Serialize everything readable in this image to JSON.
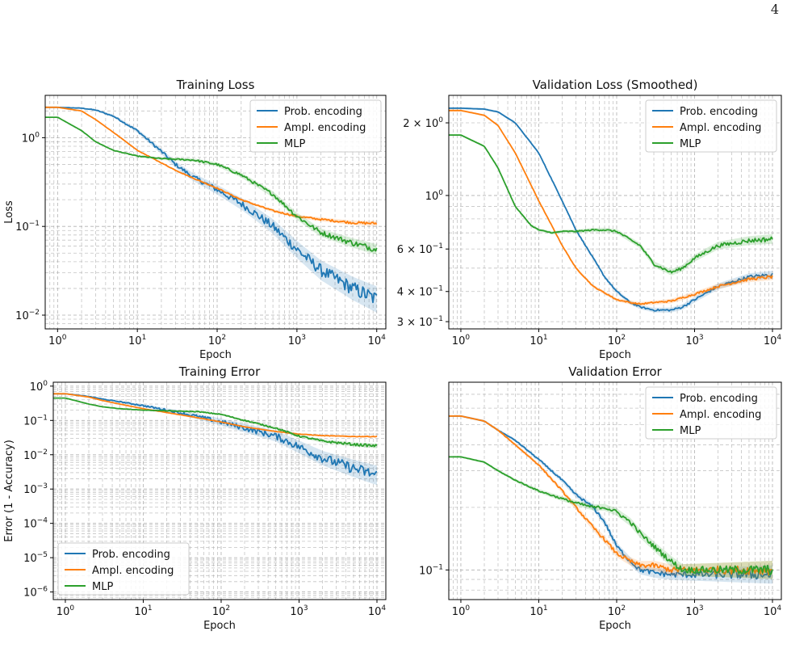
{
  "page_number": "4",
  "colors": {
    "prob": "#1f77b4",
    "ampl": "#ff7f0e",
    "mlp": "#2ca02c",
    "grid": "#b0b0b0"
  },
  "chart_data": [
    {
      "type": "line",
      "title": "Training Loss",
      "xlabel": "Epoch",
      "ylabel": "Loss",
      "xscale": "log",
      "yscale": "log",
      "xlim": [
        0.7,
        13000
      ],
      "ylim": [
        0.007,
        3.0
      ],
      "xticks": [
        1,
        10,
        100,
        1000,
        10000
      ],
      "xticklabels": [
        "10^0",
        "10^1",
        "10^2",
        "10^3",
        "10^4"
      ],
      "yticks": [
        0.01,
        0.1,
        1
      ],
      "yticklabels": [
        "10^-2",
        "10^-1",
        "10^0"
      ],
      "grid": true,
      "legend": "top-right",
      "series": [
        {
          "name": "Prob. encoding",
          "color": "#1f77b4",
          "noise": 0.18,
          "x": [
            0.7,
            1,
            2,
            3,
            5,
            10,
            20,
            30,
            50,
            100,
            200,
            300,
            500,
            1000,
            2000,
            5000,
            10000
          ],
          "y": [
            2.2,
            2.2,
            2.15,
            2.05,
            1.75,
            1.2,
            0.7,
            0.5,
            0.36,
            0.26,
            0.18,
            0.14,
            0.1,
            0.055,
            0.032,
            0.02,
            0.015
          ]
        },
        {
          "name": "Ampl. encoding",
          "color": "#ff7f0e",
          "noise": 0.03,
          "x": [
            0.7,
            1,
            2,
            3,
            5,
            10,
            20,
            30,
            50,
            100,
            200,
            500,
            1000,
            2000,
            5000,
            10000
          ],
          "y": [
            2.2,
            2.2,
            2.0,
            1.6,
            1.15,
            0.72,
            0.52,
            0.43,
            0.35,
            0.27,
            0.2,
            0.15,
            0.13,
            0.12,
            0.11,
            0.108
          ]
        },
        {
          "name": "MLP",
          "color": "#2ca02c",
          "noise": 0.07,
          "x": [
            0.7,
            1,
            2,
            3,
            5,
            10,
            20,
            50,
            100,
            200,
            500,
            1000,
            2000,
            5000,
            10000
          ],
          "y": [
            1.7,
            1.7,
            1.2,
            0.9,
            0.72,
            0.62,
            0.58,
            0.56,
            0.5,
            0.38,
            0.23,
            0.13,
            0.085,
            0.065,
            0.055
          ]
        }
      ]
    },
    {
      "type": "line",
      "title": "Validation Loss (Smoothed)",
      "xlabel": "Epoch",
      "ylabel": "",
      "xscale": "log",
      "yscale": "log",
      "xlim": [
        0.7,
        13000
      ],
      "ylim": [
        0.28,
        2.6
      ],
      "xticks": [
        1,
        10,
        100,
        1000,
        10000
      ],
      "xticklabels": [
        "10^0",
        "10^1",
        "10^2",
        "10^3",
        "10^4"
      ],
      "yticks": [
        2,
        1,
        0.6,
        0.4,
        0.3
      ],
      "yticklabels": [
        "2 × 10^0",
        "10^0",
        "6 × 10^-1",
        "4 × 10^-1",
        "3 × 10^-1"
      ],
      "grid": true,
      "legend": "top-right",
      "series": [
        {
          "name": "Prob. encoding",
          "color": "#1f77b4",
          "noise": 0.015,
          "x": [
            0.7,
            1,
            2,
            3,
            5,
            10,
            20,
            30,
            50,
            70,
            100,
            150,
            200,
            300,
            500,
            700,
            1000,
            2000,
            5000,
            10000
          ],
          "y": [
            2.3,
            2.3,
            2.28,
            2.22,
            2.0,
            1.5,
            0.95,
            0.72,
            0.55,
            0.46,
            0.4,
            0.36,
            0.345,
            0.335,
            0.335,
            0.345,
            0.37,
            0.42,
            0.46,
            0.47
          ]
        },
        {
          "name": "Ampl. encoding",
          "color": "#ff7f0e",
          "noise": 0.012,
          "x": [
            0.7,
            1,
            2,
            3,
            5,
            10,
            20,
            30,
            50,
            100,
            150,
            200,
            300,
            500,
            1000,
            2000,
            5000,
            10000
          ],
          "y": [
            2.25,
            2.25,
            2.15,
            1.95,
            1.5,
            0.95,
            0.62,
            0.5,
            0.42,
            0.37,
            0.36,
            0.355,
            0.36,
            0.365,
            0.39,
            0.42,
            0.45,
            0.46
          ]
        },
        {
          "name": "MLP",
          "color": "#2ca02c",
          "noise": 0.02,
          "x": [
            0.7,
            1,
            2,
            3,
            5,
            8,
            10,
            15,
            20,
            30,
            50,
            70,
            100,
            200,
            300,
            500,
            700,
            1000,
            2000,
            5000,
            10000
          ],
          "y": [
            1.78,
            1.78,
            1.6,
            1.3,
            0.9,
            0.75,
            0.72,
            0.7,
            0.71,
            0.71,
            0.72,
            0.72,
            0.71,
            0.62,
            0.52,
            0.48,
            0.5,
            0.55,
            0.62,
            0.65,
            0.66
          ]
        }
      ]
    },
    {
      "type": "line",
      "title": "Training Error",
      "xlabel": "Epoch",
      "ylabel": "Error (1 - Accuracy)",
      "xscale": "log",
      "yscale": "log",
      "xlim": [
        0.7,
        13000
      ],
      "ylim": [
        6e-07,
        1.3
      ],
      "xticks": [
        1,
        10,
        100,
        1000,
        10000
      ],
      "xticklabels": [
        "10^0",
        "10^1",
        "10^2",
        "10^3",
        "10^4"
      ],
      "yticks": [
        1,
        0.1,
        0.01,
        0.001,
        0.0001,
        1e-05,
        1e-06
      ],
      "yticklabels": [
        "10^0",
        "10^-1",
        "10^-2",
        "10^-3",
        "10^-4",
        "10^-5",
        "10^-6"
      ],
      "grid": true,
      "legend": "bottom-left",
      "series": [
        {
          "name": "Prob. encoding",
          "color": "#1f77b4",
          "noise": 0.35,
          "x": [
            0.7,
            1,
            2,
            3,
            5,
            10,
            20,
            50,
            100,
            200,
            500,
            1000,
            2000,
            5000,
            10000
          ],
          "y": [
            0.6,
            0.6,
            0.5,
            0.42,
            0.35,
            0.27,
            0.2,
            0.13,
            0.09,
            0.06,
            0.035,
            0.017,
            0.008,
            0.004,
            0.0025
          ]
        },
        {
          "name": "Ampl. encoding",
          "color": "#ff7f0e",
          "noise": 0.02,
          "x": [
            0.7,
            1,
            2,
            3,
            5,
            10,
            20,
            50,
            100,
            200,
            500,
            1000,
            2000,
            5000,
            10000
          ],
          "y": [
            0.6,
            0.6,
            0.48,
            0.38,
            0.3,
            0.22,
            0.17,
            0.12,
            0.09,
            0.065,
            0.048,
            0.04,
            0.036,
            0.034,
            0.034
          ]
        },
        {
          "name": "MLP",
          "color": "#2ca02c",
          "noise": 0.08,
          "x": [
            0.7,
            1,
            2,
            3,
            5,
            10,
            20,
            50,
            100,
            200,
            500,
            1000,
            2000,
            5000,
            10000
          ],
          "y": [
            0.45,
            0.45,
            0.3,
            0.25,
            0.22,
            0.2,
            0.19,
            0.18,
            0.15,
            0.1,
            0.06,
            0.035,
            0.025,
            0.02,
            0.018
          ]
        }
      ]
    },
    {
      "type": "line",
      "title": "Validation Error",
      "xlabel": "Epoch",
      "ylabel": "",
      "xscale": "log",
      "yscale": "log",
      "xlim": [
        0.7,
        13000
      ],
      "ylim": [
        0.072,
        0.8
      ],
      "xticks": [
        1,
        10,
        100,
        1000,
        10000
      ],
      "xticklabels": [
        "10^0",
        "10^1",
        "10^2",
        "10^3",
        "10^4"
      ],
      "yticks": [
        0.1
      ],
      "yticklabels": [
        "10^-1"
      ],
      "grid": true,
      "legend": "top-right",
      "series": [
        {
          "name": "Prob. encoding",
          "color": "#1f77b4",
          "noise": 0.05,
          "x": [
            0.7,
            1,
            2,
            3,
            5,
            10,
            20,
            30,
            50,
            70,
            100,
            150,
            200,
            300,
            500,
            1000,
            2000,
            5000,
            10000
          ],
          "y": [
            0.55,
            0.55,
            0.52,
            0.47,
            0.42,
            0.34,
            0.27,
            0.23,
            0.2,
            0.17,
            0.13,
            0.11,
            0.1,
            0.097,
            0.095,
            0.095,
            0.095,
            0.095,
            0.095
          ]
        },
        {
          "name": "Ampl. encoding",
          "color": "#ff7f0e",
          "noise": 0.05,
          "x": [
            0.7,
            1,
            2,
            3,
            5,
            10,
            20,
            30,
            50,
            70,
            100,
            150,
            200,
            300,
            500,
            1000,
            2000,
            5000,
            10000
          ],
          "y": [
            0.55,
            0.55,
            0.52,
            0.47,
            0.4,
            0.32,
            0.24,
            0.2,
            0.16,
            0.14,
            0.12,
            0.11,
            0.105,
            0.105,
            0.1,
            0.1,
            0.1,
            0.1,
            0.1
          ]
        },
        {
          "name": "MLP",
          "color": "#2ca02c",
          "noise": 0.05,
          "x": [
            0.7,
            1,
            2,
            3,
            5,
            10,
            20,
            30,
            50,
            70,
            100,
            150,
            200,
            300,
            500,
            700,
            1000,
            2000,
            5000,
            10000
          ],
          "y": [
            0.35,
            0.35,
            0.33,
            0.3,
            0.27,
            0.24,
            0.22,
            0.21,
            0.2,
            0.2,
            0.19,
            0.17,
            0.15,
            0.13,
            0.11,
            0.1,
            0.1,
            0.1,
            0.1,
            0.1
          ]
        }
      ]
    }
  ]
}
